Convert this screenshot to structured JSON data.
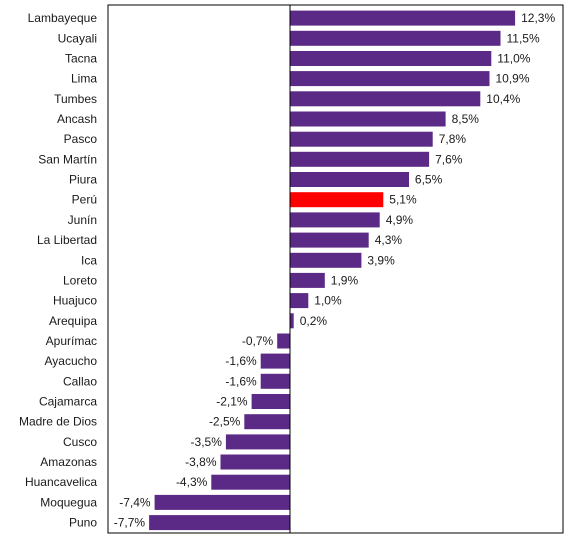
{
  "chart_data": {
    "type": "bar",
    "orientation": "horizontal",
    "categories": [
      "Lambayeque",
      "Ucayali",
      "Tacna",
      "Lima",
      "Tumbes",
      "Ancash",
      "Pasco",
      "San Martín",
      "Piura",
      "Perú",
      "Junín",
      "La Libertad",
      "Ica",
      "Loreto",
      "Huajuco",
      "Arequipa",
      "Apurímac",
      "Ayacucho",
      "Callao",
      "Cajamarca",
      "Madre de Dios",
      "Cusco",
      "Amazonas",
      "Huancavelica",
      "Moquegua",
      "Puno"
    ],
    "values": [
      12.3,
      11.5,
      11.0,
      10.9,
      10.4,
      8.5,
      7.8,
      7.6,
      6.5,
      5.1,
      4.9,
      4.3,
      3.9,
      1.9,
      1.0,
      0.2,
      -0.7,
      -1.6,
      -1.6,
      -2.1,
      -2.5,
      -3.5,
      -3.8,
      -4.3,
      -7.4,
      -7.7
    ],
    "value_labels": [
      "12,3%",
      "11,5%",
      "11,0%",
      "10,9%",
      "10,4%",
      "8,5%",
      "7,8%",
      "7,6%",
      "6,5%",
      "5,1%",
      "4,9%",
      "4,3%",
      "3,9%",
      "1,9%",
      "1,0%",
      "0,2%",
      "-0,7%",
      "-1,6%",
      "-1,6%",
      "-2,1%",
      "-2,5%",
      "-3,5%",
      "-3,8%",
      "-4,3%",
      "-7,4%",
      "-7,7%"
    ],
    "highlight_category": "Perú",
    "colors": {
      "default": "#5b2a86",
      "highlight": "#ff0000",
      "axis": "#000000"
    },
    "xlim": [
      -8,
      13
    ],
    "grid": false,
    "legend": "none"
  }
}
